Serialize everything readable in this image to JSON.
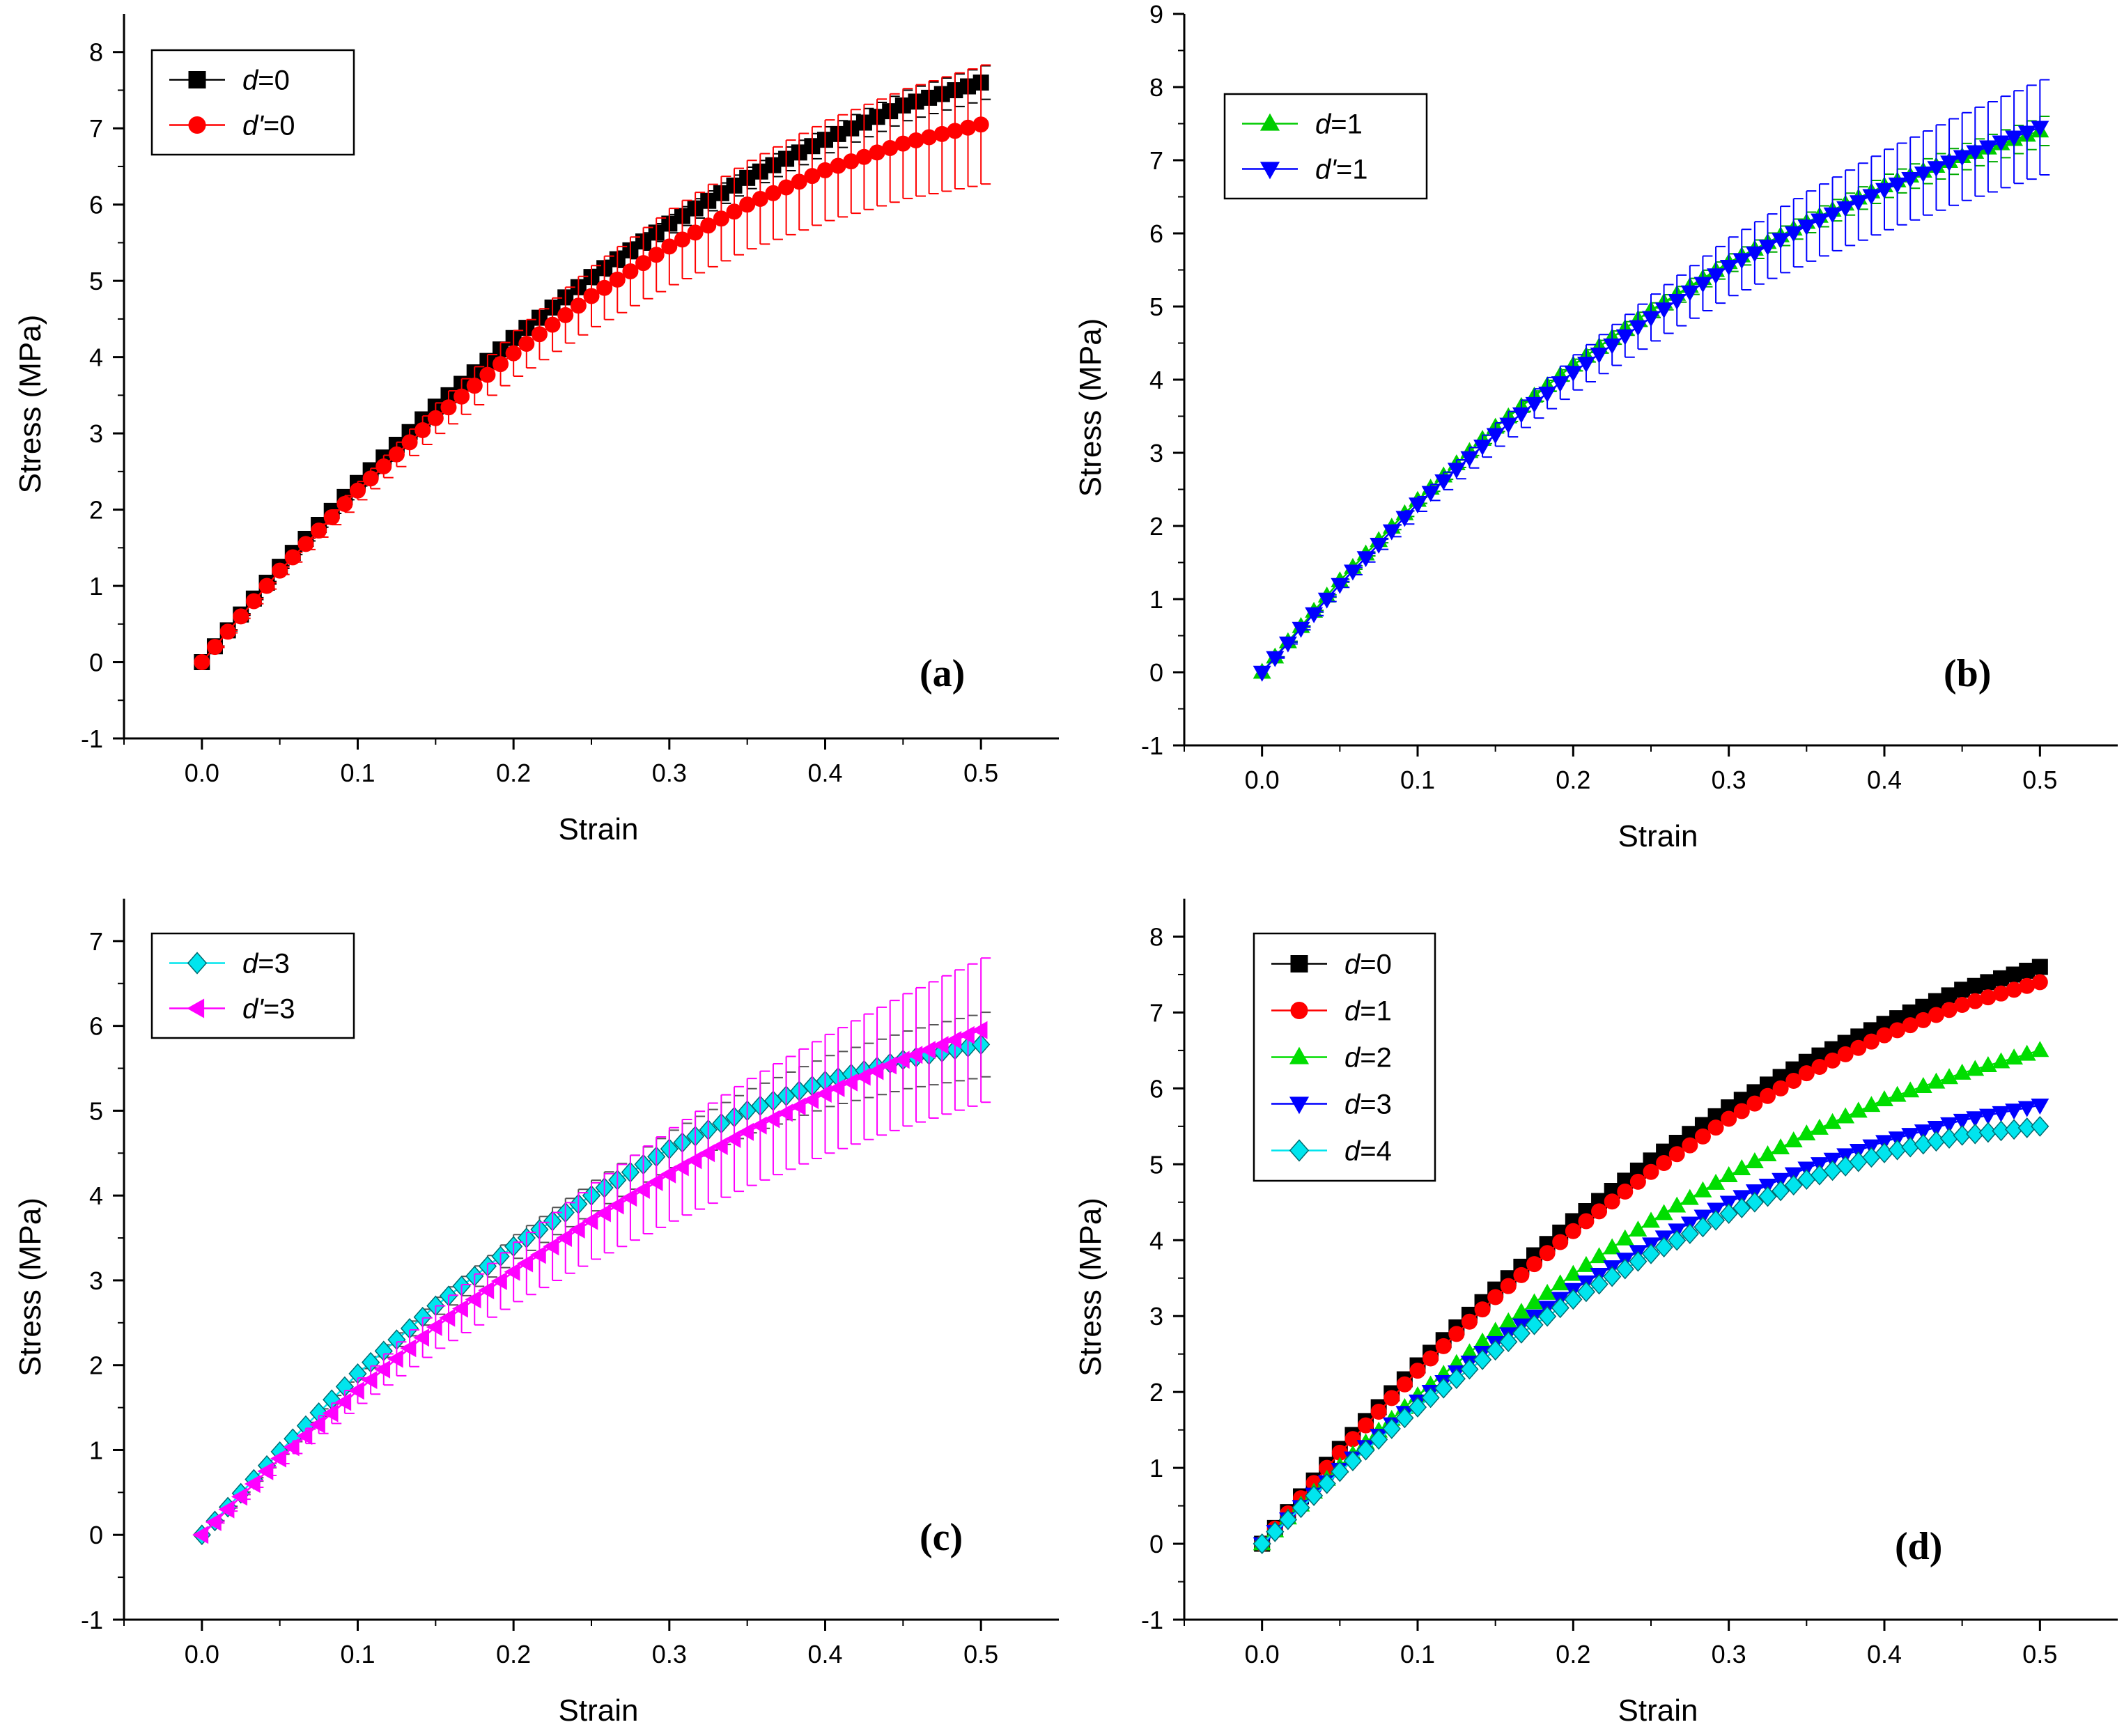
{
  "chart_data": [
    {
      "panel": "(a)",
      "type": "line",
      "xlabel": "Strain",
      "ylabel": "Stress (MPa)",
      "xlim": [
        -0.05,
        0.55
      ],
      "ylim": [
        -1,
        8.5
      ],
      "xticks": [
        0.0,
        0.1,
        0.2,
        0.3,
        0.4,
        0.5
      ],
      "yticks": [
        -1,
        0,
        1,
        2,
        3,
        4,
        5,
        6,
        7,
        8
      ],
      "legend": "top-left",
      "series": [
        {
          "name": "d=0",
          "legend_var": "d",
          "legend_val": "=0",
          "marker": "square",
          "color": "#000000",
          "error_color": "#000000",
          "x": [
            0,
            0.05,
            0.1,
            0.15,
            0.2,
            0.25,
            0.3,
            0.35,
            0.4,
            0.45,
            0.5
          ],
          "y": [
            0,
            1.25,
            2.35,
            3.35,
            4.25,
            5.05,
            5.75,
            6.35,
            6.85,
            7.3,
            7.6
          ],
          "err": [
            0,
            0.02,
            0.04,
            0.06,
            0.08,
            0.1,
            0.12,
            0.14,
            0.17,
            0.2,
            0.22
          ]
        },
        {
          "name": "d'=0",
          "legend_var": "d'",
          "legend_val": "=0",
          "marker": "circle",
          "color": "#ff0000",
          "error_color": "#ff0000",
          "x": [
            0,
            0.05,
            0.1,
            0.15,
            0.2,
            0.25,
            0.3,
            0.35,
            0.4,
            0.45,
            0.5
          ],
          "y": [
            0,
            1.2,
            2.25,
            3.2,
            4.05,
            4.8,
            5.45,
            6.0,
            6.45,
            6.8,
            7.05
          ],
          "err": [
            0,
            0.05,
            0.12,
            0.2,
            0.3,
            0.4,
            0.5,
            0.58,
            0.66,
            0.72,
            0.78
          ]
        }
      ]
    },
    {
      "panel": "(b)",
      "type": "line",
      "xlabel": "Strain",
      "ylabel": "Stress (MPa)",
      "xlim": [
        -0.05,
        0.55
      ],
      "ylim": [
        -1,
        9
      ],
      "xticks": [
        0.0,
        0.1,
        0.2,
        0.3,
        0.4,
        0.5
      ],
      "yticks": [
        -1,
        0,
        1,
        2,
        3,
        4,
        5,
        6,
        7,
        8,
        9
      ],
      "legend": "top-left",
      "series": [
        {
          "name": "d=1",
          "legend_var": "d",
          "legend_val": "=1",
          "marker": "triangle-up",
          "color": "#00cc00",
          "error_color": "#00aa00",
          "x": [
            0,
            0.05,
            0.1,
            0.15,
            0.2,
            0.25,
            0.3,
            0.35,
            0.4,
            0.45,
            0.5
          ],
          "y": [
            0,
            1.25,
            2.35,
            3.35,
            4.2,
            4.95,
            5.6,
            6.15,
            6.65,
            7.05,
            7.4
          ],
          "err": [
            0,
            0.02,
            0.04,
            0.06,
            0.08,
            0.1,
            0.12,
            0.14,
            0.16,
            0.18,
            0.2
          ]
        },
        {
          "name": "d'=1",
          "legend_var": "d'",
          "legend_val": "=1",
          "marker": "triangle-down",
          "color": "#0000ff",
          "error_color": "#0000ff",
          "x": [
            0,
            0.05,
            0.1,
            0.15,
            0.2,
            0.25,
            0.3,
            0.35,
            0.4,
            0.45,
            0.5
          ],
          "y": [
            0,
            1.2,
            2.3,
            3.25,
            4.1,
            4.85,
            5.55,
            6.1,
            6.6,
            7.05,
            7.45
          ],
          "err": [
            0,
            0.04,
            0.1,
            0.16,
            0.24,
            0.32,
            0.4,
            0.48,
            0.55,
            0.6,
            0.65
          ]
        }
      ]
    },
    {
      "panel": "(c)",
      "type": "line",
      "xlabel": "Strain",
      "ylabel": "Stress (MPa)",
      "xlim": [
        -0.05,
        0.55
      ],
      "ylim": [
        -1,
        7.5
      ],
      "xticks": [
        0.0,
        0.1,
        0.2,
        0.3,
        0.4,
        0.5
      ],
      "yticks": [
        -1,
        0,
        1,
        2,
        3,
        4,
        5,
        6,
        7
      ],
      "legend": "top-left",
      "series": [
        {
          "name": "d=3",
          "legend_var": "d",
          "legend_val": "=3",
          "marker": "diamond",
          "color": "#00e5ee",
          "error_color": "#555555",
          "x": [
            0,
            0.05,
            0.1,
            0.15,
            0.2,
            0.25,
            0.3,
            0.35,
            0.4,
            0.45,
            0.5
          ],
          "y": [
            0,
            0.98,
            1.9,
            2.7,
            3.4,
            4.0,
            4.55,
            5.0,
            5.35,
            5.6,
            5.78
          ],
          "err": [
            0,
            0.03,
            0.06,
            0.1,
            0.14,
            0.18,
            0.22,
            0.26,
            0.3,
            0.34,
            0.38
          ]
        },
        {
          "name": "d'=3",
          "legend_var": "d'",
          "legend_val": "=3",
          "marker": "triangle-left",
          "color": "#ff00ff",
          "error_color": "#ff00ff",
          "x": [
            0,
            0.05,
            0.1,
            0.15,
            0.2,
            0.25,
            0.3,
            0.35,
            0.4,
            0.45,
            0.5
          ],
          "y": [
            0,
            0.9,
            1.7,
            2.45,
            3.1,
            3.7,
            4.25,
            4.75,
            5.2,
            5.6,
            5.95
          ],
          "err": [
            0,
            0.06,
            0.15,
            0.25,
            0.35,
            0.45,
            0.55,
            0.63,
            0.7,
            0.78,
            0.85
          ]
        }
      ]
    },
    {
      "panel": "(d)",
      "type": "line",
      "xlabel": "Strain",
      "ylabel": "Stress (MPa)",
      "xlim": [
        -0.05,
        0.55
      ],
      "ylim": [
        -1,
        8.5
      ],
      "xticks": [
        0.0,
        0.1,
        0.2,
        0.3,
        0.4,
        0.5
      ],
      "yticks": [
        -1,
        0,
        1,
        2,
        3,
        4,
        5,
        6,
        7,
        8
      ],
      "legend": "top-left",
      "series": [
        {
          "name": "d=0",
          "legend_var": "d",
          "legend_val": "=0",
          "marker": "square",
          "color": "#000000",
          "x": [
            0,
            0.05,
            0.1,
            0.15,
            0.2,
            0.25,
            0.3,
            0.35,
            0.4,
            0.45,
            0.5
          ],
          "y": [
            0,
            1.25,
            2.35,
            3.35,
            4.25,
            5.05,
            5.75,
            6.35,
            6.85,
            7.3,
            7.6
          ]
        },
        {
          "name": "d=1",
          "legend_var": "d",
          "legend_val": "=1",
          "marker": "circle",
          "color": "#ff0000",
          "x": [
            0,
            0.05,
            0.1,
            0.15,
            0.2,
            0.25,
            0.3,
            0.35,
            0.4,
            0.45,
            0.5
          ],
          "y": [
            0,
            1.2,
            2.28,
            3.25,
            4.12,
            4.9,
            5.6,
            6.2,
            6.7,
            7.1,
            7.4
          ]
        },
        {
          "name": "d=2",
          "legend_var": "d",
          "legend_val": "=2",
          "marker": "triangle-up",
          "color": "#00dd00",
          "x": [
            0,
            0.05,
            0.1,
            0.15,
            0.2,
            0.25,
            0.3,
            0.35,
            0.4,
            0.45,
            0.5
          ],
          "y": [
            0,
            1.02,
            1.95,
            2.8,
            3.55,
            4.25,
            4.85,
            5.4,
            5.85,
            6.2,
            6.5
          ]
        },
        {
          "name": "d=3",
          "legend_var": "d",
          "legend_val": "=3",
          "marker": "triangle-down",
          "color": "#0000ff",
          "x": [
            0,
            0.05,
            0.1,
            0.15,
            0.2,
            0.25,
            0.3,
            0.35,
            0.4,
            0.45,
            0.5
          ],
          "y": [
            0,
            0.98,
            1.88,
            2.65,
            3.35,
            3.95,
            4.5,
            4.95,
            5.3,
            5.58,
            5.78
          ]
        },
        {
          "name": "d=4",
          "legend_var": "d",
          "legend_val": "=4",
          "marker": "diamond",
          "color": "#00e5ee",
          "x": [
            0,
            0.05,
            0.1,
            0.15,
            0.2,
            0.25,
            0.3,
            0.35,
            0.4,
            0.45,
            0.5
          ],
          "y": [
            0,
            0.95,
            1.8,
            2.55,
            3.22,
            3.82,
            4.35,
            4.8,
            5.15,
            5.38,
            5.5
          ]
        }
      ]
    }
  ]
}
